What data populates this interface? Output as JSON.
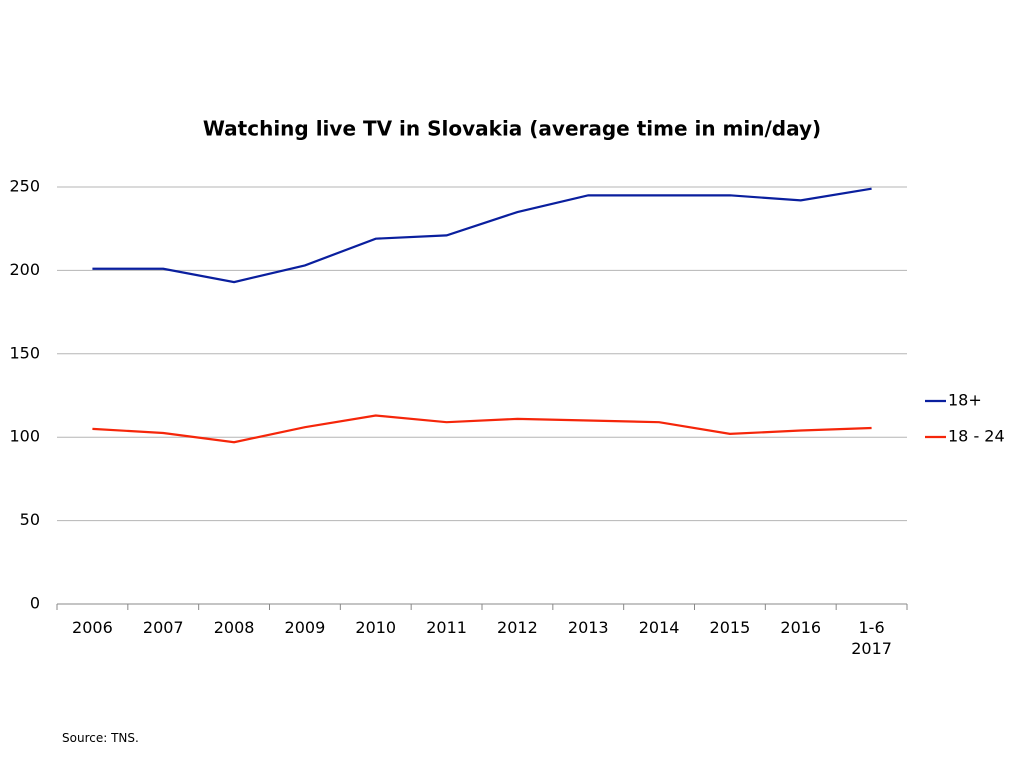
{
  "chart_data": {
    "type": "line",
    "title": "Watching live TV in Slovakia (average time in min/day)",
    "categories": [
      "2006",
      "2007",
      "2008",
      "2009",
      "2010",
      "2011",
      "2012",
      "2013",
      "2014",
      "2015",
      "2016",
      "1-6 2017"
    ],
    "series": [
      {
        "name": "18+",
        "color": "#0a1f9e",
        "values": [
          201,
          201,
          193,
          203,
          219,
          221,
          235,
          245,
          245,
          245,
          242,
          249
        ]
      },
      {
        "name": "18 - 24",
        "color": "#f5260a",
        "values": [
          105,
          102.5,
          97,
          106,
          113,
          109,
          111,
          110,
          109,
          102,
          104,
          105.5
        ]
      }
    ],
    "ylim": [
      0,
      250
    ],
    "yticks": [
      0,
      50,
      100,
      150,
      200,
      250
    ],
    "grid": true,
    "legend": "right",
    "source": "Source: TNS."
  }
}
